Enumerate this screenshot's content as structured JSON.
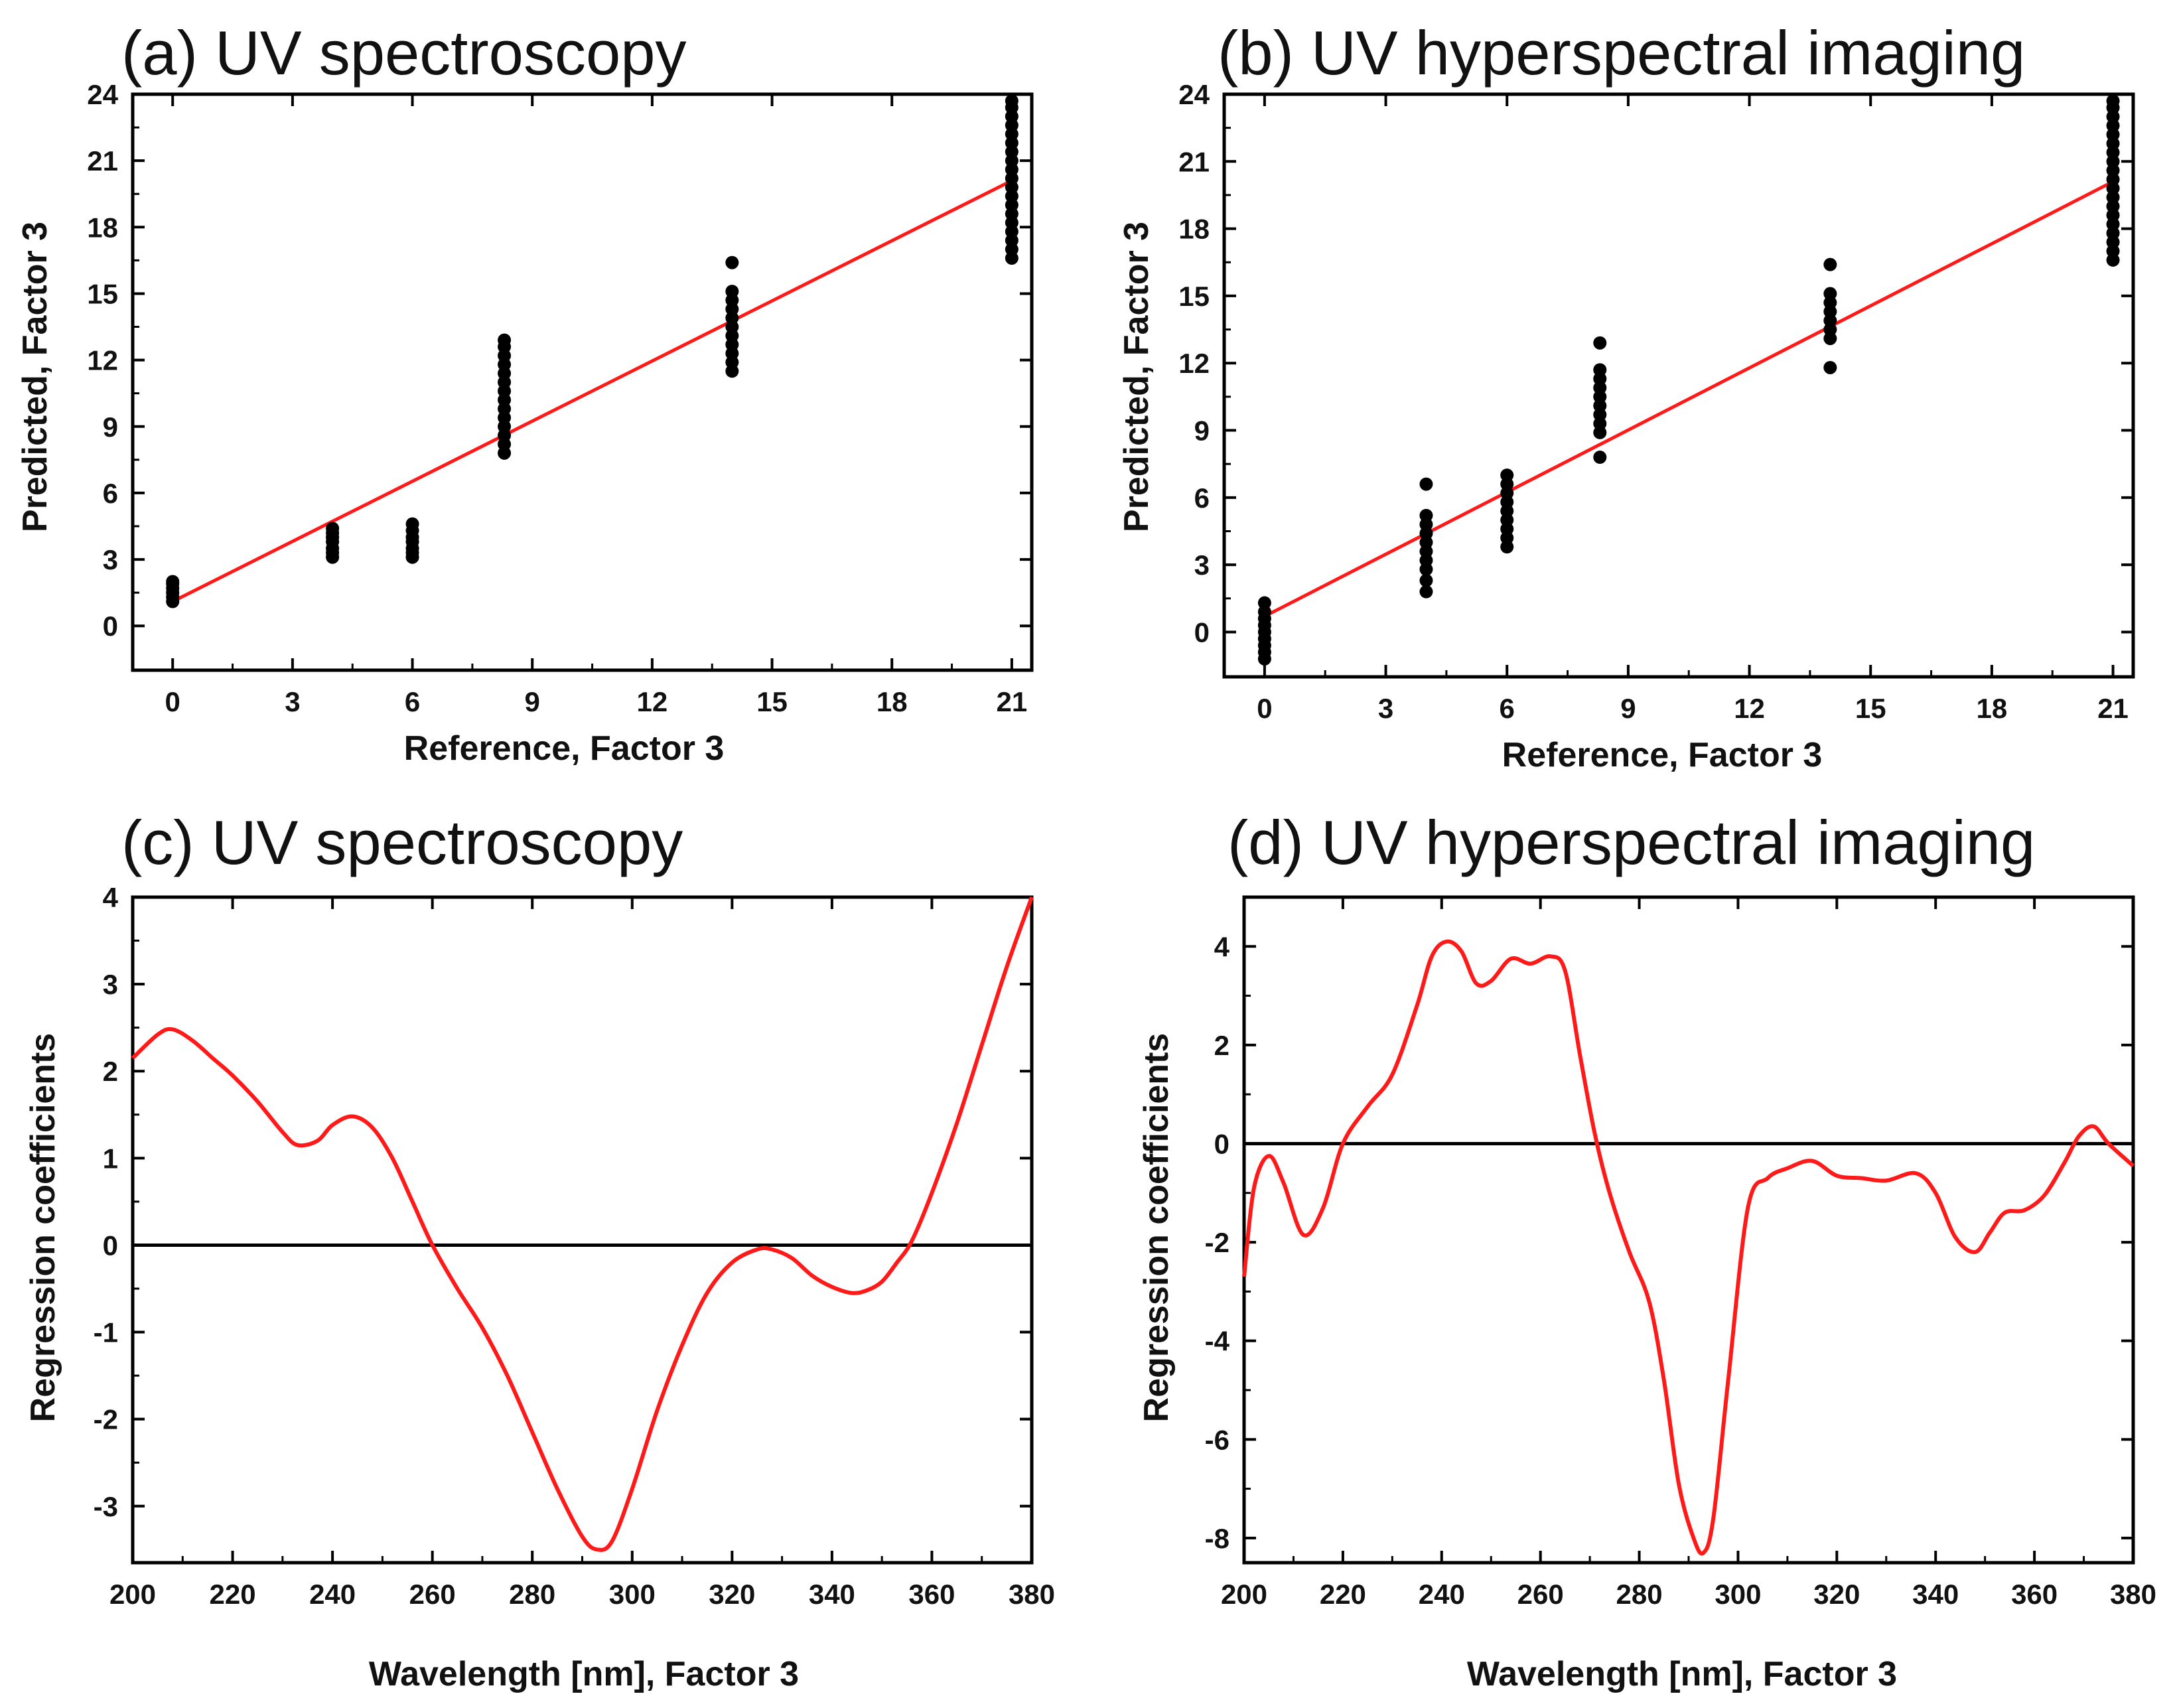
{
  "figure": {
    "colors": {
      "fit": "#ff1a1a",
      "points": "#000000",
      "axes": "#000000",
      "zero_line": "#000000"
    }
  },
  "chart_data": [
    {
      "id": "a",
      "type": "scatter",
      "title": "(a) UV spectroscopy",
      "xlabel": "Reference, Factor 3",
      "ylabel": "Predicted, Factor 3",
      "xlim": [
        -1,
        21.5
      ],
      "ylim": [
        -2,
        24
      ],
      "xticks": [
        0,
        3,
        6,
        9,
        12,
        15,
        18,
        21
      ],
      "yticks": [
        0,
        3,
        6,
        9,
        12,
        15,
        18,
        21,
        24
      ],
      "fit_line": {
        "x": [
          0,
          21
        ],
        "y": [
          1.1,
          20.1
        ]
      },
      "points": [
        {
          "x": 0,
          "y": [
            1.1,
            1.3,
            1.5,
            1.7,
            1.9,
            2.0
          ]
        },
        {
          "x": 4,
          "y": [
            3.1,
            3.3,
            3.5,
            3.8,
            4.0,
            4.2,
            4.4
          ]
        },
        {
          "x": 6,
          "y": [
            3.1,
            3.3,
            3.5,
            3.8,
            4.0,
            4.3,
            4.6
          ]
        },
        {
          "x": 8.3,
          "y": [
            7.8,
            8.2,
            8.6,
            9.0,
            9.4,
            9.8,
            10.2,
            10.6,
            11.0,
            11.4,
            11.8,
            12.2,
            12.6,
            12.9
          ]
        },
        {
          "x": 14,
          "y": [
            11.5,
            11.9,
            12.3,
            12.7,
            13.1,
            13.5,
            13.9,
            14.3,
            14.7,
            15.1,
            16.4
          ]
        },
        {
          "x": 21,
          "y": [
            16.6,
            17.0,
            17.4,
            17.8,
            18.2,
            18.6,
            19.0,
            19.4,
            19.8,
            20.2,
            20.6,
            21.0,
            21.4,
            21.8,
            22.2,
            22.6,
            23.0,
            23.4,
            23.7
          ]
        }
      ]
    },
    {
      "id": "b",
      "type": "scatter",
      "title": "(b) UV hyperspectral imaging",
      "xlabel": "Reference, Factor 3",
      "ylabel": "Predicted, Factor 3",
      "xlim": [
        -1,
        21.5
      ],
      "ylim": [
        -2,
        24
      ],
      "xticks": [
        0,
        3,
        6,
        9,
        12,
        15,
        18,
        21
      ],
      "yticks": [
        0,
        3,
        6,
        9,
        12,
        15,
        18,
        21,
        24
      ],
      "fit_line": {
        "x": [
          0,
          21
        ],
        "y": [
          0.7,
          20.1
        ]
      },
      "points": [
        {
          "x": 0,
          "y": [
            -1.2,
            -0.9,
            -0.6,
            -0.3,
            0.0,
            0.3,
            0.6,
            0.9,
            1.3
          ]
        },
        {
          "x": 4,
          "y": [
            1.8,
            2.3,
            2.8,
            3.2,
            3.6,
            4.0,
            4.4,
            4.8,
            5.2,
            6.6
          ]
        },
        {
          "x": 6,
          "y": [
            3.8,
            4.2,
            4.6,
            5.0,
            5.4,
            5.8,
            6.2,
            6.6,
            7.0
          ]
        },
        {
          "x": 8.3,
          "y": [
            7.8,
            8.9,
            9.3,
            9.7,
            10.1,
            10.5,
            10.9,
            11.3,
            11.7,
            12.9
          ]
        },
        {
          "x": 14,
          "y": [
            11.8,
            13.1,
            13.5,
            13.9,
            14.3,
            14.7,
            15.1,
            16.4
          ]
        },
        {
          "x": 21,
          "y": [
            16.6,
            17.0,
            17.4,
            17.8,
            18.2,
            18.6,
            19.0,
            19.4,
            19.8,
            20.2,
            20.6,
            21.0,
            21.4,
            21.8,
            22.2,
            22.6,
            23.0,
            23.4,
            23.7
          ]
        }
      ]
    },
    {
      "id": "c",
      "type": "line",
      "title": "(c) UV spectroscopy",
      "xlabel": "Wavelength [nm], Factor 3",
      "ylabel": "Regression coefficients",
      "xlim": [
        200,
        380
      ],
      "ylim": [
        -3.65,
        4
      ],
      "xticks": [
        200,
        220,
        240,
        260,
        280,
        300,
        320,
        340,
        360,
        380
      ],
      "yticks": [
        -3,
        -2,
        -1,
        0,
        1,
        2,
        3,
        4
      ],
      "zero_line": true,
      "series": [
        {
          "name": "regression coefficients",
          "x": [
            200,
            205,
            208,
            212,
            216,
            220,
            225,
            230,
            233,
            237,
            240,
            244,
            248,
            252,
            256,
            260,
            265,
            270,
            275,
            280,
            285,
            290,
            293,
            296,
            300,
            305,
            310,
            315,
            320,
            325,
            328,
            332,
            336,
            340,
            344,
            347,
            350,
            353,
            356,
            360,
            365,
            370,
            375,
            380
          ],
          "y": [
            2.15,
            2.42,
            2.48,
            2.35,
            2.15,
            1.95,
            1.65,
            1.3,
            1.15,
            1.2,
            1.38,
            1.48,
            1.35,
            1.0,
            0.5,
            0.0,
            -0.5,
            -0.95,
            -1.5,
            -2.15,
            -2.8,
            -3.35,
            -3.5,
            -3.4,
            -2.8,
            -1.9,
            -1.15,
            -0.55,
            -0.2,
            -0.05,
            -0.05,
            -0.15,
            -0.35,
            -0.48,
            -0.55,
            -0.52,
            -0.42,
            -0.2,
            0.05,
            0.6,
            1.4,
            2.3,
            3.2,
            4.0
          ]
        }
      ]
    },
    {
      "id": "d",
      "type": "line",
      "title": "(d) UV hyperspectral imaging",
      "xlabel": "Wavelength [nm], Factor 3",
      "ylabel": "Regression coefficients",
      "xlim": [
        200,
        380
      ],
      "ylim": [
        -8.5,
        5
      ],
      "xticks": [
        200,
        220,
        240,
        260,
        280,
        300,
        320,
        340,
        360,
        380
      ],
      "yticks": [
        -8,
        -6,
        -4,
        -2,
        0,
        2,
        4
      ],
      "zero_line": true,
      "series": [
        {
          "name": "regression coefficients",
          "x": [
            200,
            202,
            205,
            208,
            212,
            216,
            220,
            225,
            230,
            235,
            238,
            241,
            244,
            247,
            250,
            254,
            258,
            262,
            265,
            268,
            271,
            274,
            278,
            282,
            285,
            288,
            291,
            293,
            295,
            298,
            302,
            306,
            310,
            315,
            320,
            325,
            330,
            336,
            340,
            344,
            348,
            351,
            354,
            358,
            362,
            366,
            369,
            372,
            375,
            380
          ],
          "y": [
            -2.7,
            -0.9,
            -0.25,
            -0.8,
            -1.85,
            -1.3,
            0.0,
            0.75,
            1.4,
            2.8,
            3.8,
            4.1,
            3.9,
            3.25,
            3.3,
            3.75,
            3.65,
            3.8,
            3.5,
            1.8,
            0.2,
            -1.0,
            -2.2,
            -3.2,
            -4.8,
            -6.9,
            -8.0,
            -8.3,
            -7.6,
            -4.8,
            -1.3,
            -0.7,
            -0.5,
            -0.35,
            -0.65,
            -0.7,
            -0.75,
            -0.6,
            -1.0,
            -1.9,
            -2.2,
            -1.8,
            -1.4,
            -1.35,
            -1.05,
            -0.4,
            0.15,
            0.35,
            0.0,
            -0.45
          ]
        }
      ]
    }
  ]
}
